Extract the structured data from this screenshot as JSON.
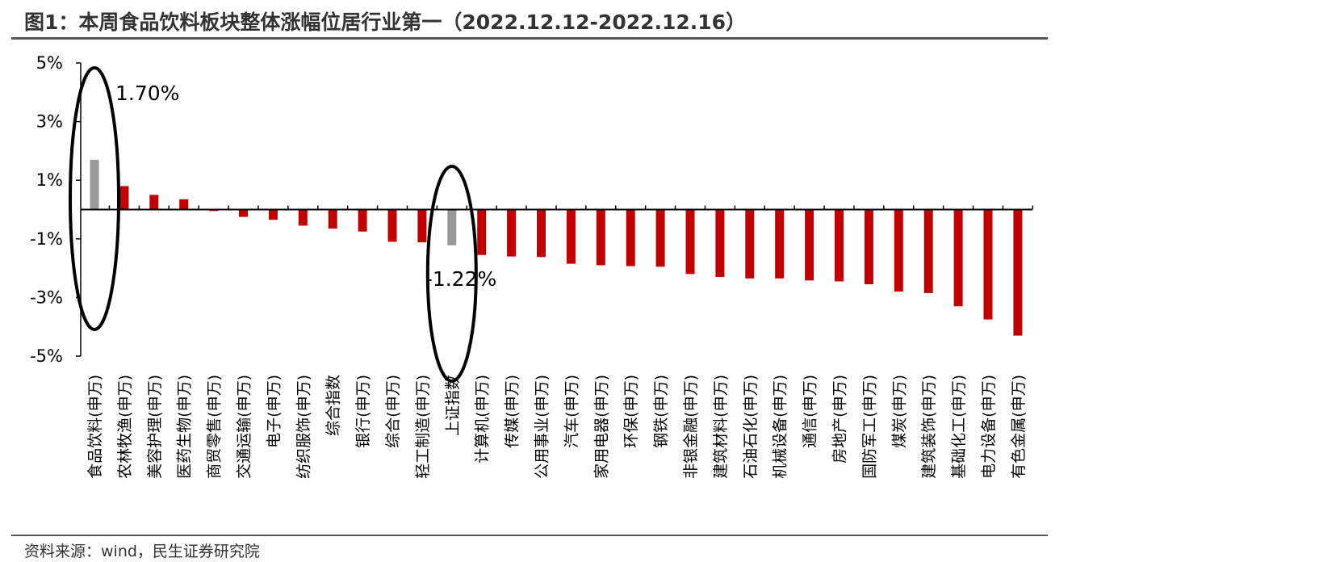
{
  "title": "图1：本周食品饮料板块整体涨幅位居行业第一（2022.12.12-2022.12.16）",
  "source": "资料来源：wind，民生证券研究院",
  "colors": {
    "bar": "#C00000",
    "highlight": "#999999",
    "axis": "#000000",
    "ellipse": "#000000"
  },
  "chart_data": {
    "type": "bar",
    "title": "",
    "xlabel": "",
    "ylabel": "",
    "ylim": [
      -5,
      5
    ],
    "yticks": [
      5,
      3,
      1,
      -1,
      -3,
      -5
    ],
    "ytick_labels": [
      "5%",
      "3%",
      "1%",
      "-1%",
      "-3%",
      "-5%"
    ],
    "grid": false,
    "legend": "none",
    "categories": [
      "食品饮料(申万)",
      "农林牧渔(申万)",
      "美容护理(申万)",
      "医药生物(申万)",
      "商贸零售(申万)",
      "交通运输(申万)",
      "电子(申万)",
      "纺织服饰(申万)",
      "综合指数",
      "银行(申万)",
      "综合(申万)",
      "轻工制造(申万)",
      "上证指数",
      "计算机(申万)",
      "传媒(申万)",
      "公用事业(申万)",
      "汽车(申万)",
      "家用电器(申万)",
      "环保(申万)",
      "钢铁(申万)",
      "非银金融(申万)",
      "建筑材料(申万)",
      "石油石化(申万)",
      "机械设备(申万)",
      "通信(申万)",
      "房地产(申万)",
      "国防军工(申万)",
      "煤炭(申万)",
      "建筑装饰(申万)",
      "基础化工(申万)",
      "电力设备(申万)",
      "有色金属(申万)"
    ],
    "values": [
      1.7,
      0.8,
      0.5,
      0.35,
      -0.05,
      -0.25,
      -0.35,
      -0.55,
      -0.65,
      -0.75,
      -1.1,
      -1.12,
      -1.22,
      -1.55,
      -1.6,
      -1.62,
      -1.85,
      -1.9,
      -1.93,
      -1.95,
      -2.2,
      -2.3,
      -2.35,
      -2.35,
      -2.42,
      -2.45,
      -2.55,
      -2.8,
      -2.85,
      -3.3,
      -3.75,
      -4.3
    ],
    "highlighted": [
      "食品饮料(申万)",
      "上证指数"
    ],
    "annotations": [
      {
        "category": "食品饮料(申万)",
        "text": "1.70%"
      },
      {
        "category": "上证指数",
        "text": "-1.22%"
      }
    ]
  }
}
